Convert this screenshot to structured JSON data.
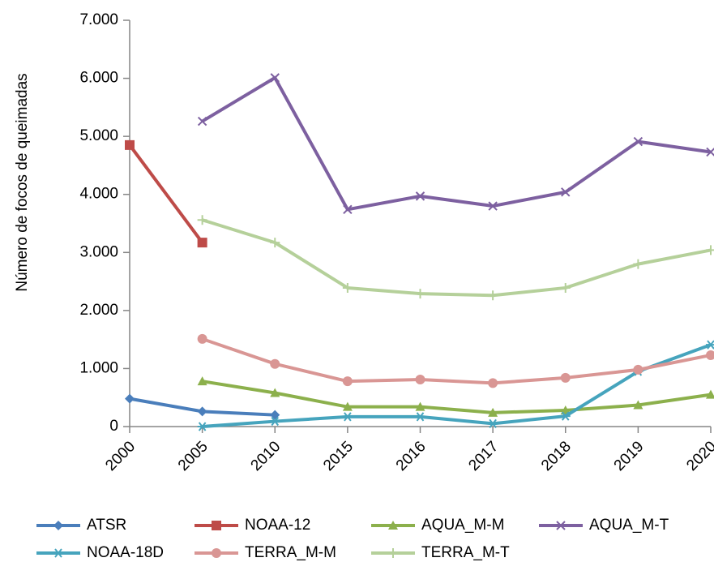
{
  "chart_data": {
    "type": "line",
    "y_label": "Número de focos de queimadas",
    "categories": [
      "2000",
      "2005",
      "2010",
      "2015",
      "2016",
      "2017",
      "2018",
      "2019",
      "2020"
    ],
    "ylim": [
      0,
      7000
    ],
    "yticks": [
      0,
      {
        "value": 1000,
        "label": "1.000"
      },
      {
        "value": 2000,
        "label": "2.000"
      },
      {
        "value": 3000,
        "label": "3.000"
      },
      {
        "value": 4000,
        "label": "4.000"
      },
      {
        "value": 5000,
        "label": "5.000"
      },
      {
        "value": 6000,
        "label": "6.000"
      },
      {
        "value": 7000,
        "label": "7.000"
      }
    ],
    "series": [
      {
        "name": "ATSR",
        "color": "#4a7ebb",
        "marker": "diamond",
        "values": [
          480,
          260,
          200,
          null,
          null,
          null,
          null,
          null,
          null
        ]
      },
      {
        "name": "NOAA-12",
        "color": "#be4b48",
        "marker": "square",
        "values": [
          4850,
          3170,
          null,
          null,
          null,
          null,
          null,
          null,
          null
        ]
      },
      {
        "name": "AQUA_M-M",
        "color": "#8cb04c",
        "marker": "triangle",
        "values": [
          null,
          780,
          580,
          340,
          340,
          240,
          280,
          370,
          550
        ]
      },
      {
        "name": "AQUA_M-T",
        "color": "#7d60a0",
        "marker": "x",
        "values": [
          null,
          5260,
          6010,
          3740,
          3970,
          3800,
          4040,
          4910,
          4730
        ]
      },
      {
        "name": "NOAA-18D",
        "color": "#46a4bd",
        "marker": "star",
        "values": [
          null,
          0,
          90,
          170,
          170,
          50,
          180,
          950,
          1410
        ]
      },
      {
        "name": "TERRA_M-M",
        "color": "#d99694",
        "marker": "circle",
        "values": [
          null,
          1510,
          1080,
          780,
          810,
          750,
          840,
          980,
          1230
        ]
      },
      {
        "name": "TERRA_M-T",
        "color": "#b5d09a",
        "marker": "plus",
        "values": [
          null,
          3560,
          3170,
          2390,
          2290,
          2260,
          2390,
          2800,
          3040
        ]
      }
    ]
  }
}
